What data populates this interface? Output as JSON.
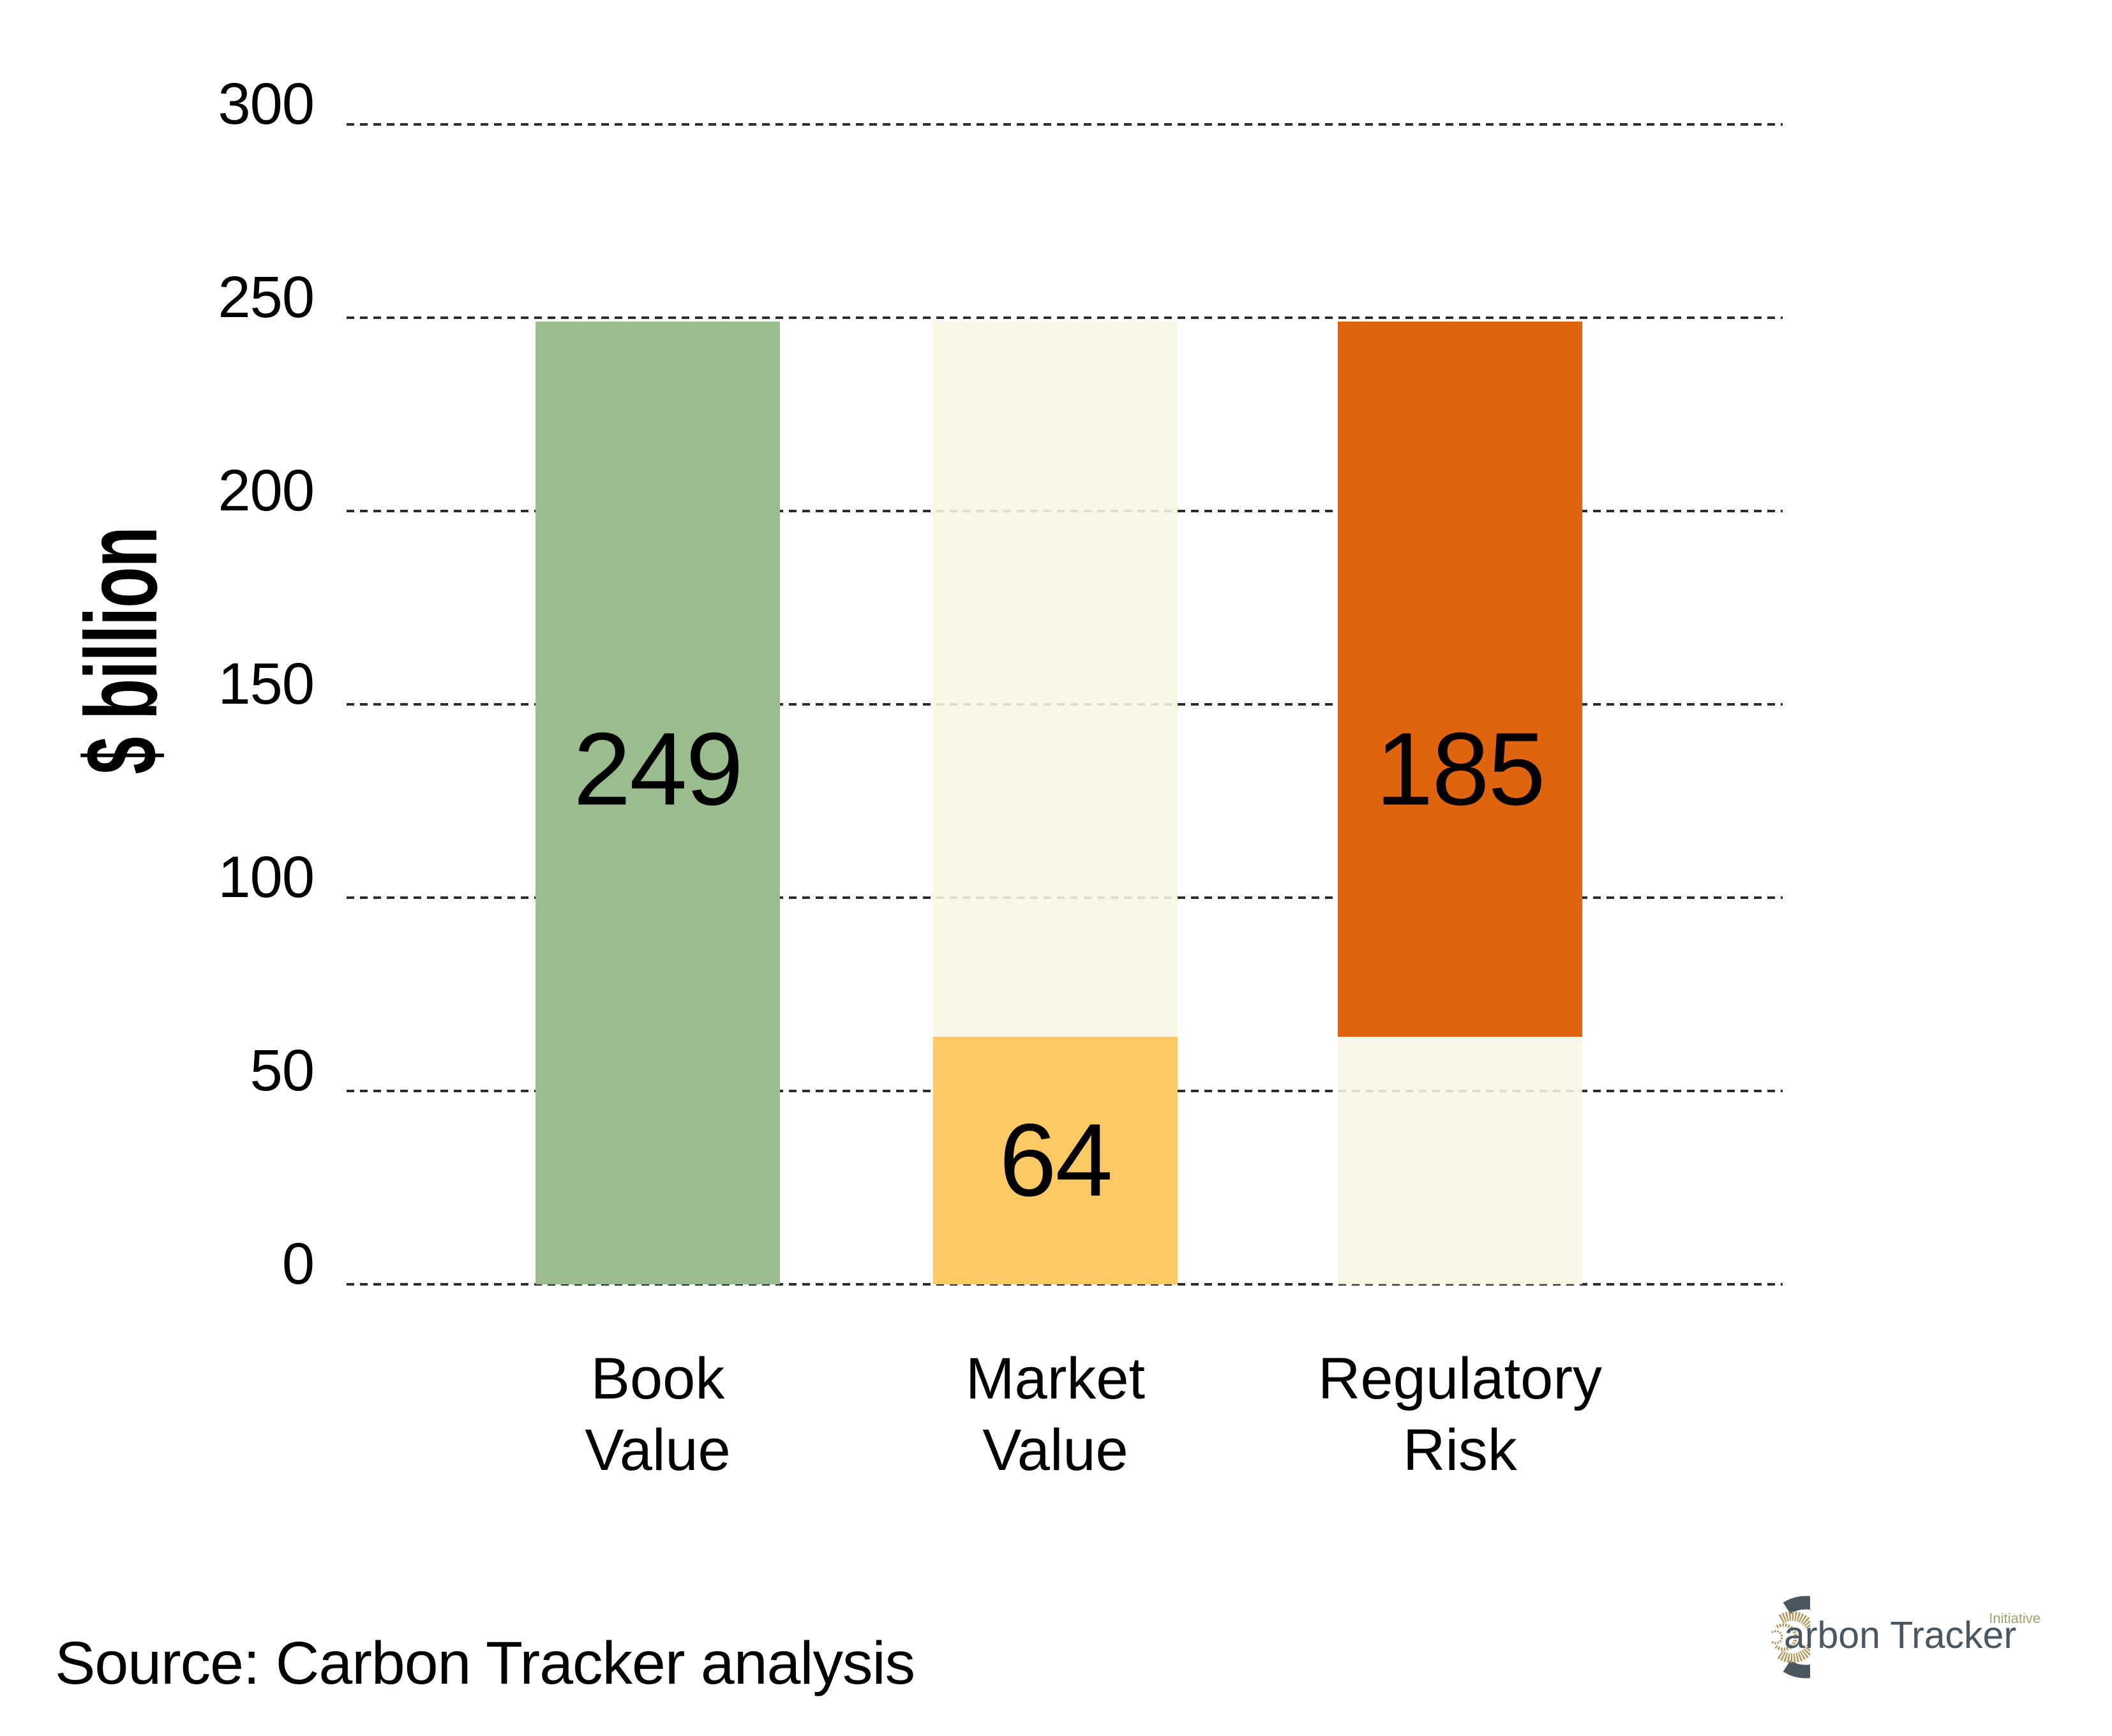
{
  "chart_data": {
    "type": "bar",
    "title": "",
    "xlabel": "",
    "ylabel": "$ billion",
    "ylim": [
      0,
      300
    ],
    "yticks": [
      300,
      250,
      200,
      150,
      100,
      50,
      0
    ],
    "grid": {
      "horizontal": true,
      "line_style": "dashed",
      "color": "#2d2d2d"
    },
    "legend_position": "none",
    "categories": [
      "Book Value",
      "Market Value",
      "Regulatory Risk"
    ],
    "series": [
      {
        "key": "book-value",
        "category": "Book\nValue",
        "total": 249,
        "segments": [
          {
            "from": 0,
            "to": 249,
            "color": "#9bbd8d",
            "label": "249",
            "label_y_frac": 0.465
          }
        ]
      },
      {
        "key": "market-value",
        "category": "Market\nValue",
        "total": 249,
        "segments": [
          {
            "from": 64,
            "to": 249,
            "color": "#f8f7e4",
            "translucent": true
          },
          {
            "from": 0,
            "to": 64,
            "color": "#fcca64",
            "label": "64",
            "label_y_frac": 0.5
          }
        ]
      },
      {
        "key": "regulatory-risk",
        "category": "Regulatory\nRisk",
        "total": 249,
        "segments": [
          {
            "from": 64,
            "to": 249,
            "color": "#e0640e",
            "label": "185",
            "label_y_frac": 0.626
          },
          {
            "from": 0,
            "to": 64,
            "color": "#f8f7e4",
            "translucent": true
          }
        ]
      }
    ],
    "annotations": {
      "book_value": 249,
      "market_value": 64,
      "regulatory_risk": 185
    }
  },
  "source_text": "Source: Carbon Tracker analysis",
  "logo": {
    "wordmark": "arbon Tracker",
    "mark_letter": "C",
    "suffix": "Initiative",
    "colors": {
      "slate": "#4a5761",
      "tan": "#b4985e",
      "olive": "#a1a46c"
    }
  }
}
